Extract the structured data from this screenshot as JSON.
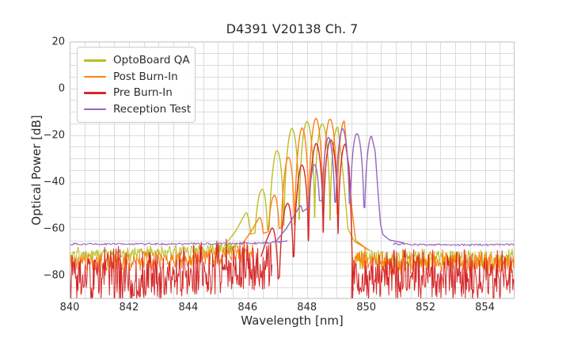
{
  "title": "D4391 V20138 Ch. 7",
  "axes": {
    "xlabel": "Wavelength [nm]",
    "ylabel": "Optical Power [dB]",
    "xlim": [
      840,
      855
    ],
    "ylim": [
      -90,
      20
    ],
    "xticks": [
      [
        840,
        "840"
      ],
      [
        842,
        "842"
      ],
      [
        844,
        "844"
      ],
      [
        846,
        "846"
      ],
      [
        848,
        "848"
      ],
      [
        850,
        "850"
      ],
      [
        852,
        "852"
      ],
      [
        854,
        "854"
      ]
    ],
    "yticks": [
      [
        20,
        "20"
      ],
      [
        0,
        "0"
      ],
      [
        -20,
        "−20"
      ],
      [
        -40,
        "−40"
      ],
      [
        -60,
        "−60"
      ],
      [
        -80,
        "−80"
      ]
    ],
    "x_minor_step": 0.5,
    "y_minor_step": 5,
    "grid_color": "#dcdcdc",
    "frame_color": "#c8c8c8",
    "text_color": "#2b2b2b",
    "background": "#ffffff"
  },
  "legend": {
    "position": "upper left",
    "items": [
      {
        "label": "OptoBoard QA",
        "color": "#bcbd22"
      },
      {
        "label": "Post Burn-In",
        "color": "#ff7f0e"
      },
      {
        "label": "Pre Burn-In",
        "color": "#d62728"
      },
      {
        "label": "Reception Test",
        "color": "#9467bd"
      }
    ]
  },
  "chart_data": {
    "type": "line",
    "title": "D4391 V20138 Ch. 7",
    "xlabel": "Wavelength [nm]",
    "ylabel": "Optical Power [dB]",
    "xlim": [
      840,
      855
    ],
    "ylim": [
      -90,
      20
    ],
    "grid": true,
    "legend_position": "upper left",
    "series": [
      {
        "name": "OptoBoard QA",
        "color": "#bcbd22",
        "peaks": [
          [
            845.92,
            -53.5
          ],
          [
            846.44,
            -44
          ],
          [
            846.96,
            -27
          ],
          [
            847.48,
            -17.2
          ],
          [
            848.0,
            -14.2
          ],
          [
            848.52,
            -15.3
          ],
          [
            849.04,
            -16.6
          ]
        ],
        "components": [
          {
            "type": "noise",
            "x0": 840,
            "x1": 845.7,
            "dx": 0.022,
            "seed": 101,
            "lw": 1.0,
            "base": [
              [
                840,
                -69.2
              ],
              [
                842,
                -68.8
              ],
              [
                843.5,
                -68.1
              ],
              [
                844.6,
                -67.2
              ],
              [
                845.7,
                -66.4
              ]
            ],
            "amp": 0.9,
            "down": 5.5,
            "dpow": 1.5,
            "up_prob": 0.05,
            "up_amp": 1.3
          },
          {
            "type": "modes",
            "x0": 845.2,
            "x1": 850.15,
            "dx": 0.008,
            "lw": 1.4,
            "period": 0.52,
            "phase": 848.0,
            "mod0": 845.92,
            "mod1": 849.04,
            "depth": 60,
            "sharp": 0.3,
            "envelope": [
              [
                845.2,
                -67.5
              ],
              [
                845.6,
                -61
              ],
              [
                845.92,
                -53.5
              ],
              [
                846.44,
                -44
              ],
              [
                846.96,
                -27
              ],
              [
                847.48,
                -17.2
              ],
              [
                848.0,
                -14.2
              ],
              [
                848.52,
                -15.3
              ],
              [
                849.04,
                -16.6
              ],
              [
                849.15,
                -28
              ],
              [
                849.28,
                -45
              ],
              [
                849.38,
                -60
              ],
              [
                849.6,
                -65.5
              ],
              [
                850.15,
                -69.5
              ]
            ],
            "floor": [
              [
                845.9,
                -63
              ],
              [
                846.7,
                -60.5
              ],
              [
                847.5,
                -57.5
              ],
              [
                848.3,
                -56.5
              ],
              [
                849.05,
                -58
              ]
            ]
          },
          {
            "type": "noise",
            "x0": 849.55,
            "x1": 855,
            "dx": 0.022,
            "seed": 102,
            "lw": 1.0,
            "base": [
              [
                849.55,
                -69.8
              ],
              [
                851,
                -70.6
              ],
              [
                855,
                -70.4
              ]
            ],
            "amp": 1.1,
            "down": 6.5,
            "dpow": 1.3,
            "up_prob": 0.07,
            "up_amp": 2.2
          }
        ]
      },
      {
        "name": "Post Burn-In",
        "color": "#ff7f0e",
        "peaks": [
          [
            846.38,
            -55.5
          ],
          [
            846.86,
            -46.5
          ],
          [
            847.34,
            -30
          ],
          [
            847.82,
            -17
          ],
          [
            848.3,
            -12.8
          ],
          [
            848.78,
            -13.2
          ],
          [
            849.26,
            -14
          ]
        ],
        "components": [
          {
            "type": "noise",
            "x0": 840,
            "x1": 846.2,
            "dx": 0.022,
            "seed": 201,
            "lw": 1.0,
            "base": [
              [
                840,
                -71.6
              ],
              [
                842,
                -71.1
              ],
              [
                843.8,
                -69.9
              ],
              [
                845.2,
                -68.4
              ],
              [
                846.2,
                -67.3
              ]
            ],
            "amp": 1.0,
            "down": 7,
            "dpow": 1.15,
            "up_prob": 0.04,
            "up_amp": 1.6
          },
          {
            "type": "modes",
            "x0": 845.8,
            "x1": 850.05,
            "dx": 0.008,
            "lw": 1.4,
            "period": 0.48,
            "phase": 848.3,
            "mod0": 846.38,
            "mod1": 849.26,
            "depth": 60,
            "sharp": 0.3,
            "envelope": [
              [
                845.8,
                -67
              ],
              [
                846.1,
                -61.5
              ],
              [
                846.38,
                -55.5
              ],
              [
                846.86,
                -46.5
              ],
              [
                847.34,
                -30
              ],
              [
                847.82,
                -17
              ],
              [
                848.3,
                -12.8
              ],
              [
                848.78,
                -13.2
              ],
              [
                849.26,
                -14
              ],
              [
                849.4,
                -34
              ],
              [
                849.52,
                -52
              ],
              [
                849.64,
                -65
              ],
              [
                850.05,
                -69
              ]
            ],
            "floor": [
              [
                846.3,
                -63
              ],
              [
                847.0,
                -60
              ],
              [
                847.9,
                -57.5
              ],
              [
                848.6,
                -56.5
              ],
              [
                849.3,
                -57.5
              ]
            ]
          },
          {
            "type": "noise",
            "x0": 849.6,
            "x1": 855,
            "dx": 0.022,
            "seed": 202,
            "lw": 1.0,
            "base": [
              [
                849.6,
                -69.3
              ],
              [
                850.6,
                -71.2
              ],
              [
                855,
                -71.2
              ]
            ],
            "amp": 1.1,
            "down": 7.5,
            "dpow": 1.05,
            "up_prob": 0.06,
            "up_amp": 2.4
          }
        ]
      },
      {
        "name": "Pre Burn-In",
        "color": "#d62728",
        "peaks": [
          [
            846.8,
            -60
          ],
          [
            847.3,
            -50
          ],
          [
            847.8,
            -33
          ],
          [
            848.3,
            -23.6
          ],
          [
            848.8,
            -22
          ],
          [
            849.3,
            -23.8
          ]
        ],
        "components": [
          {
            "type": "noise",
            "x0": 840,
            "x1": 846.85,
            "dx": 0.02,
            "seed": 301,
            "lw": 1.0,
            "base": [
              [
                840,
                -70.2
              ],
              [
                842,
                -69.7
              ],
              [
                843.5,
                -68.9
              ],
              [
                844.5,
                -67.7
              ],
              [
                845.4,
                -66.2
              ],
              [
                846.1,
                -65.7
              ],
              [
                846.85,
                -67.5
              ]
            ],
            "amp": 1.3,
            "down": 21,
            "dpow": 0.9,
            "up_prob": 0.06,
            "up_amp": 2.2
          },
          {
            "type": "modes",
            "x0": 846.45,
            "x1": 849.58,
            "dx": 0.008,
            "lw": 1.4,
            "period": 0.5,
            "phase": 848.8,
            "mod0": 846.8,
            "mod1": 849.3,
            "depth": 60,
            "sharp": 0.3,
            "envelope": [
              [
                846.45,
                -72
              ],
              [
                846.62,
                -65.5
              ],
              [
                846.8,
                -60
              ],
              [
                847.3,
                -50
              ],
              [
                847.8,
                -33
              ],
              [
                848.3,
                -23.6
              ],
              [
                848.8,
                -22
              ],
              [
                849.3,
                -23.8
              ],
              [
                849.42,
                -34
              ],
              [
                849.49,
                -55
              ],
              [
                849.55,
                -86
              ]
            ],
            "floor": [
              [
                846.8,
                -86
              ],
              [
                847.3,
                -76
              ],
              [
                847.85,
                -67
              ],
              [
                848.45,
                -61.5
              ],
              [
                848.95,
                -61.5
              ],
              [
                849.35,
                -64
              ]
            ]
          },
          {
            "type": "noise",
            "x0": 849.5,
            "x1": 855,
            "dx": 0.02,
            "seed": 302,
            "lw": 1.0,
            "base": [
              [
                849.5,
                -73
              ],
              [
                850.3,
                -71.5
              ],
              [
                852,
                -71.2
              ],
              [
                855,
                -71.3
              ]
            ],
            "amp": 1.3,
            "down": 19,
            "dpow": 0.9,
            "up_prob": 0.07,
            "up_amp": 2.6
          }
        ]
      },
      {
        "name": "Reception Test",
        "color": "#9467bd",
        "peaks": [
          [
            847.73,
            -51
          ],
          [
            848.22,
            -33
          ],
          [
            848.71,
            -21
          ],
          [
            849.2,
            -17.2
          ],
          [
            849.69,
            -19.4
          ],
          [
            850.18,
            -20.5
          ]
        ],
        "components": [
          {
            "type": "noise",
            "x0": 840,
            "x1": 847.35,
            "dx": 0.028,
            "seed": 401,
            "lw": 1.1,
            "base": [
              [
                840,
                -66.35
              ],
              [
                843,
                -66.3
              ],
              [
                845.5,
                -66.15
              ],
              [
                846.6,
                -65.9
              ],
              [
                847.35,
                -65.0
              ]
            ],
            "amp": 0.33,
            "down": 0.4,
            "dpow": 1,
            "up_prob": 0,
            "up_amp": 0
          },
          {
            "type": "modes",
            "x0": 846.95,
            "x1": 851.3,
            "dx": 0.008,
            "lw": 1.4,
            "period": 0.49,
            "phase": 849.2,
            "mod0": 847.73,
            "mod1": 850.18,
            "depth": 60,
            "sharp": 0.32,
            "envelope": [
              [
                846.95,
                -65.5
              ],
              [
                847.3,
                -60
              ],
              [
                847.73,
                -51
              ],
              [
                848.22,
                -33
              ],
              [
                848.71,
                -21
              ],
              [
                849.2,
                -17.2
              ],
              [
                849.69,
                -19.4
              ],
              [
                850.18,
                -20.5
              ],
              [
                850.3,
                -27
              ],
              [
                850.4,
                -45
              ],
              [
                850.48,
                -58
              ],
              [
                850.56,
                -62.5
              ],
              [
                850.78,
                -64.8
              ],
              [
                851.3,
                -66.2
              ]
            ],
            "floor": [
              [
                847.7,
                -54
              ],
              [
                848.4,
                -48
              ],
              [
                849.2,
                -49
              ],
              [
                849.75,
                -49.5
              ],
              [
                850.2,
                -53
              ]
            ]
          },
          {
            "type": "noise",
            "x0": 850.9,
            "x1": 855,
            "dx": 0.028,
            "seed": 402,
            "lw": 1.1,
            "base": [
              [
                850.9,
                -66.3
              ],
              [
                851.8,
                -66.6
              ],
              [
                853.5,
                -66.7
              ],
              [
                855,
                -66.6
              ]
            ],
            "amp": 0.32,
            "down": 0.4,
            "dpow": 1,
            "up_prob": 0,
            "up_amp": 0
          }
        ]
      }
    ]
  }
}
